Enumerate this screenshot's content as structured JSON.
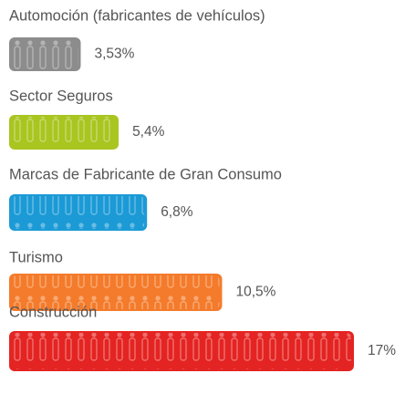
{
  "chart_data": {
    "type": "bar",
    "orientation": "horizontal",
    "categories": [
      "Automoción (fabricantes de vehículos)",
      "Sector Seguros",
      "Marcas de Fabricante de Gran Consumo",
      "Turismo",
      "Construcción"
    ],
    "values": [
      3.53,
      5.4,
      6.8,
      10.5,
      17
    ],
    "value_labels": [
      "3,53%",
      "5,4%",
      "6,8%",
      "10,5%",
      "17%"
    ],
    "colors": [
      "#8c8c8c",
      "#a9c520",
      "#1b9ad6",
      "#f47b2b",
      "#e42422"
    ]
  }
}
